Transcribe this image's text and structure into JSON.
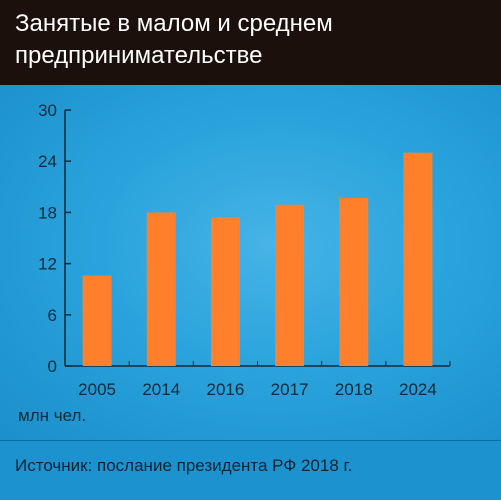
{
  "title": "Занятые в малом и среднем предпринимательстве",
  "unit_label": "млн чел.",
  "source": "Источник: послание президента РФ 2018 г.",
  "colors": {
    "header_bg": "#1c100d",
    "panel_bg": "#1a9ad6",
    "bar": "#ff7f2a",
    "axis": "#0b2a3c"
  },
  "chart_data": {
    "type": "bar",
    "categories": [
      "2005",
      "2014",
      "2016",
      "2017",
      "2018",
      "2024"
    ],
    "series": [
      {
        "values": [
          10.6,
          18,
          17.4,
          18.9,
          19.7,
          25
        ]
      }
    ],
    "yticks": [
      "0",
      "6",
      "12",
      "18",
      "24",
      "30"
    ],
    "ylim": [
      0,
      30
    ],
    "grid": false,
    "legend": "none"
  }
}
